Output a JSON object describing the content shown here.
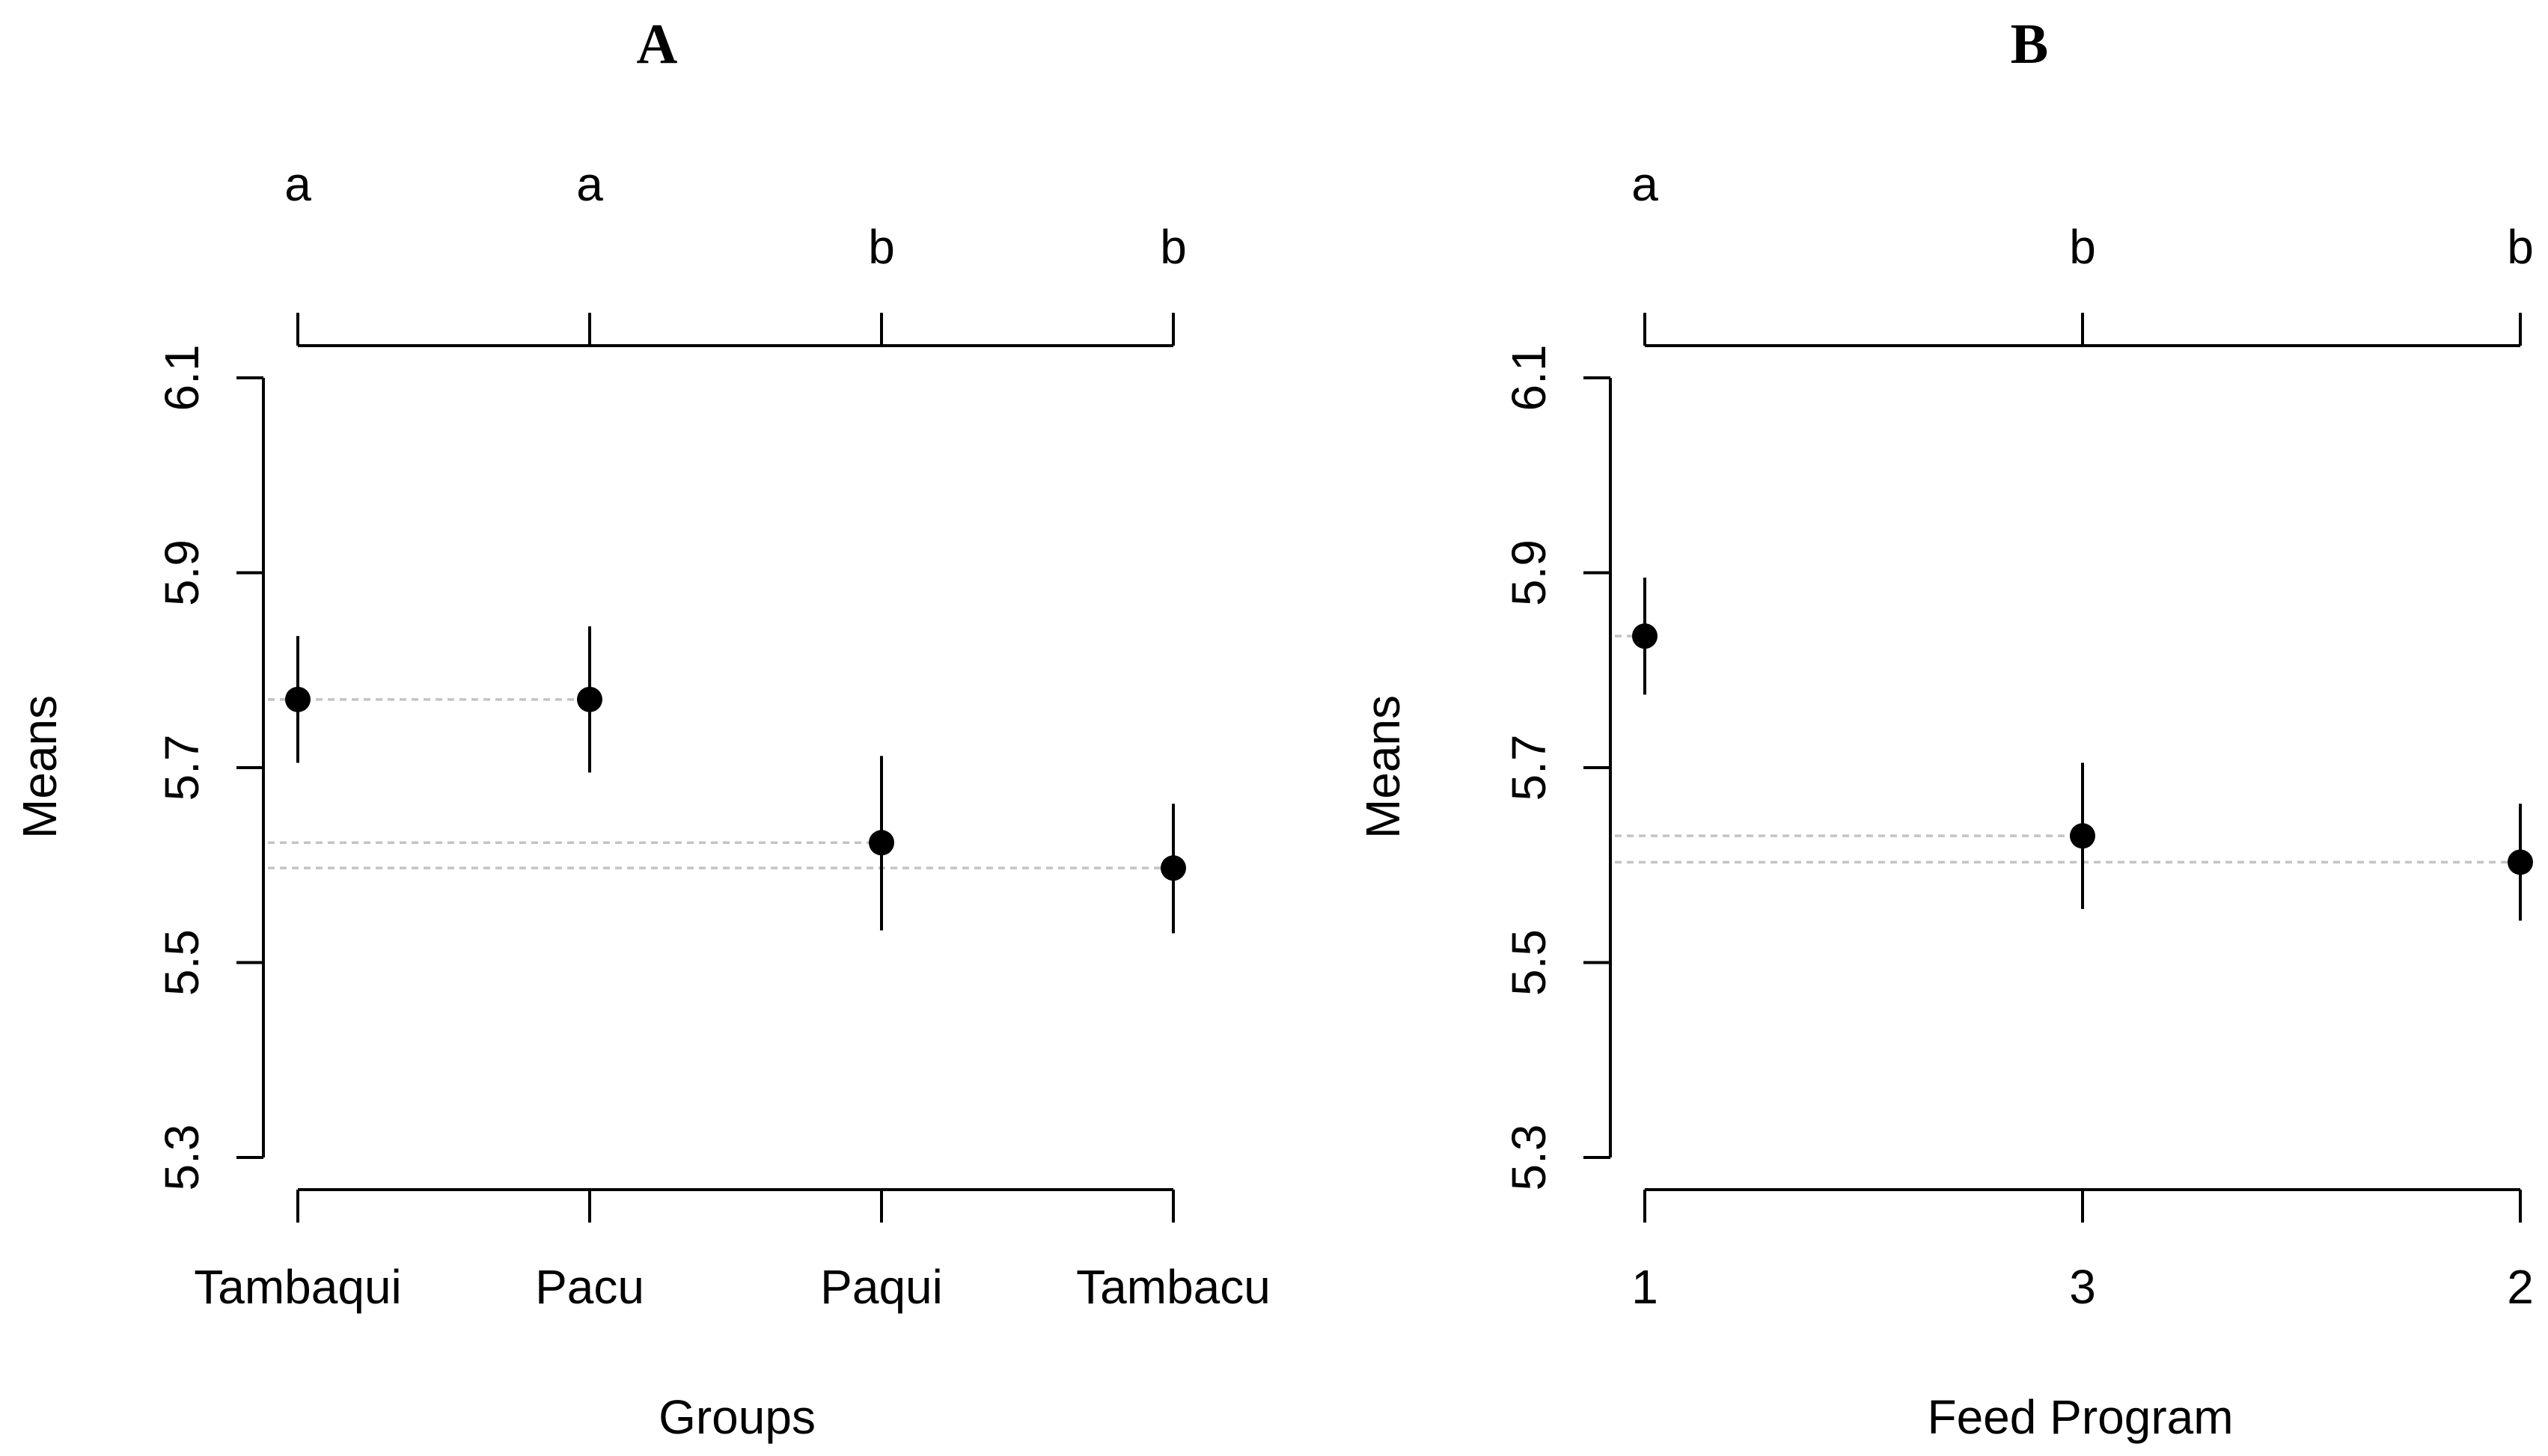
{
  "chart_data": [
    {
      "type": "scatter",
      "panel": "A",
      "title": "A",
      "xlabel": "Groups",
      "ylabel": "Means",
      "ylim": [
        5.3,
        6.1
      ],
      "yticks": [
        "5.3",
        "5.5",
        "5.7",
        "5.9",
        "6.1"
      ],
      "categories": [
        "Tambaqui",
        "Pacu",
        "Paqui",
        "Tambacu"
      ],
      "means": [
        5.77,
        5.77,
        5.623,
        5.597
      ],
      "lower": [
        5.705,
        5.695,
        5.533,
        5.53
      ],
      "upper": [
        5.835,
        5.845,
        5.712,
        5.663
      ],
      "letters": [
        "a",
        "a",
        "b",
        "b"
      ]
    },
    {
      "type": "scatter",
      "panel": "B",
      "title": "B",
      "xlabel": "Feed Program",
      "ylabel": "Means",
      "ylim": [
        5.3,
        6.1
      ],
      "yticks": [
        "5.3",
        "5.5",
        "5.7",
        "5.9",
        "6.1"
      ],
      "categories": [
        "1",
        "3",
        "2"
      ],
      "means": [
        5.835,
        5.63,
        5.603
      ],
      "lower": [
        5.775,
        5.555,
        5.543
      ],
      "upper": [
        5.895,
        5.705,
        5.663
      ],
      "letters": [
        "a",
        "b",
        "b"
      ]
    }
  ]
}
